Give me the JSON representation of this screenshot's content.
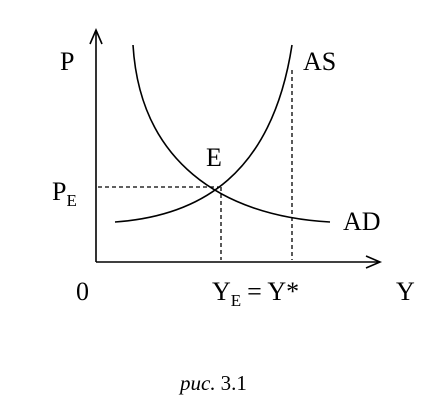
{
  "axes": {
    "y_label": "P",
    "x_label": "Y",
    "origin": "0"
  },
  "curves": {
    "supply": "AS",
    "demand": "AD"
  },
  "equilibrium": {
    "point": "E",
    "price": {
      "base": "P",
      "sub": "E"
    },
    "output": {
      "base": "Y",
      "sub": "E",
      "rest": "= Y*"
    }
  },
  "caption": {
    "label": "рис.",
    "number": "3.1"
  }
}
